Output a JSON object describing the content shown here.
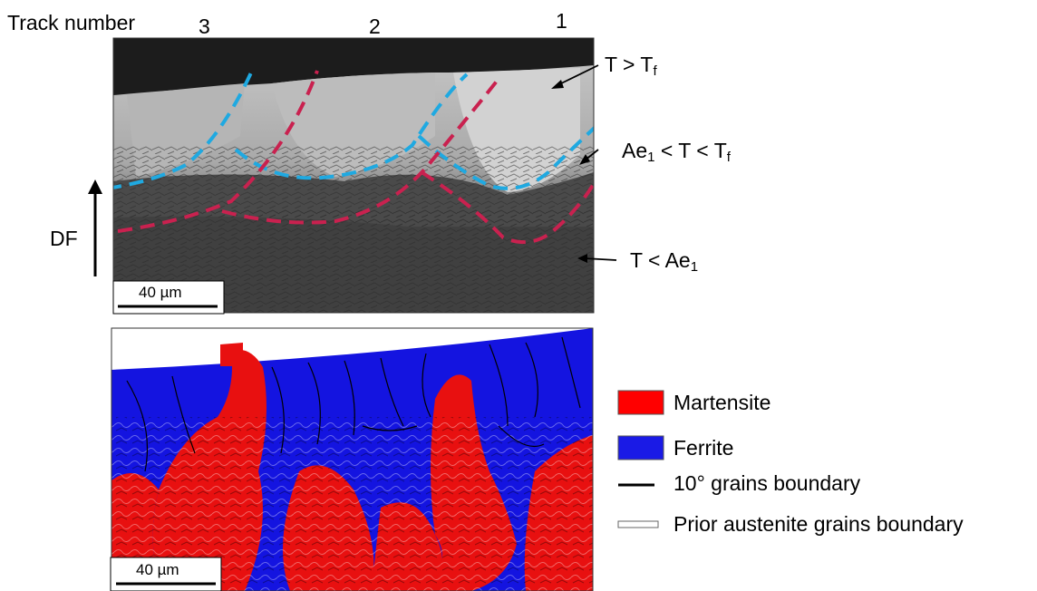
{
  "figure": {
    "track_number_label": "Track number",
    "track_numbers": [
      "3",
      "2",
      "1"
    ],
    "growth_direction_label": "DF",
    "scale_bar_top": "40 µm",
    "scale_bar_bottom": "40 µm",
    "zones": [
      {
        "base": "T > T",
        "sub": "f"
      },
      {
        "base": "Ae",
        "sub": "1",
        "tail": " < T < T",
        "sub2": "f"
      },
      {
        "base": "T < Ae",
        "sub": "1"
      }
    ],
    "line_colors": {
      "cyan_dashed": "#1fa9e1",
      "red_dashed": "#c9214f"
    }
  },
  "legend": {
    "items": [
      {
        "label": "Martensite",
        "color": "#ff0000"
      },
      {
        "label": "Ferrite",
        "color": "#1a1ae6"
      },
      {
        "label": "10° grains boundary",
        "color": "#000000"
      },
      {
        "label": "Prior austenite grains boundary",
        "color": "#ffffff"
      }
    ]
  }
}
